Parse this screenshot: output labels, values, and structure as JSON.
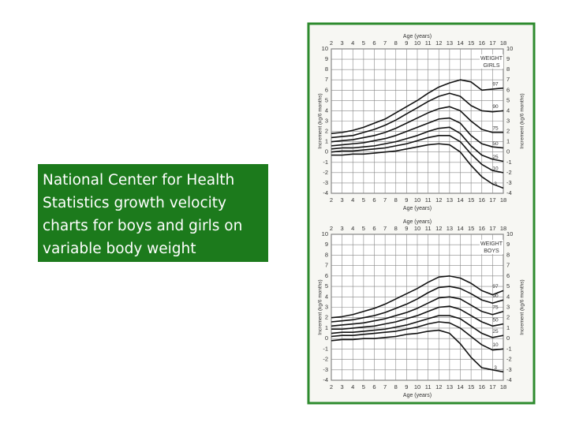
{
  "text_box": "National Center for Health Statistics growth velocity charts for boys and girls on variable body weight",
  "chart_data": [
    {
      "type": "line",
      "annotation": [
        "WEIGHT",
        "GIRLS"
      ],
      "x_label": "Age (years)",
      "y_label": "Increment (kg/6 months)",
      "x": [
        2,
        3,
        4,
        5,
        6,
        7,
        8,
        9,
        10,
        11,
        12,
        13,
        14,
        15,
        16,
        17,
        18
      ],
      "xlim": [
        2,
        18
      ],
      "xticks": [
        2,
        3,
        4,
        5,
        6,
        7,
        8,
        9,
        10,
        11,
        12,
        13,
        14,
        15,
        16,
        17,
        18
      ],
      "ylim": [
        -4,
        10
      ],
      "yticks": [
        -4,
        -3,
        -2,
        -1,
        0,
        1,
        2,
        3,
        4,
        5,
        6,
        7,
        8,
        9,
        10
      ],
      "grid": true,
      "series": [
        {
          "name": "97",
          "color": "#111111",
          "values": [
            1.8,
            1.9,
            2.1,
            2.4,
            2.8,
            3.2,
            3.8,
            4.4,
            5.0,
            5.7,
            6.3,
            6.7,
            7.0,
            6.8,
            6.0,
            6.1,
            6.2
          ]
        },
        {
          "name": "90",
          "color": "#111111",
          "values": [
            1.4,
            1.5,
            1.6,
            1.9,
            2.2,
            2.6,
            3.1,
            3.7,
            4.3,
            4.9,
            5.4,
            5.7,
            5.4,
            4.5,
            4.0,
            3.9,
            4.0
          ]
        },
        {
          "name": "75",
          "color": "#111111",
          "values": [
            1.0,
            1.1,
            1.2,
            1.4,
            1.6,
            1.9,
            2.3,
            2.8,
            3.3,
            3.8,
            4.2,
            4.4,
            4.0,
            3.0,
            2.2,
            1.9,
            1.9
          ]
        },
        {
          "name": "50",
          "color": "#111111",
          "values": [
            0.6,
            0.7,
            0.8,
            0.9,
            1.1,
            1.3,
            1.6,
            2.0,
            2.4,
            2.8,
            3.2,
            3.3,
            2.8,
            1.6,
            0.8,
            0.5,
            0.4
          ]
        },
        {
          "name": "25",
          "color": "#111111",
          "values": [
            0.3,
            0.4,
            0.4,
            0.5,
            0.6,
            0.8,
            1.0,
            1.3,
            1.6,
            2.0,
            2.3,
            2.4,
            1.8,
            0.6,
            -0.3,
            -0.7,
            -0.9
          ]
        },
        {
          "name": "10",
          "color": "#111111",
          "values": [
            0,
            0.1,
            0.1,
            0.2,
            0.3,
            0.4,
            0.6,
            0.8,
            1.1,
            1.4,
            1.6,
            1.6,
            1.0,
            -0.2,
            -1.2,
            -1.8,
            -2.0
          ]
        },
        {
          "name": "3",
          "color": "#111111",
          "values": [
            -0.3,
            -0.3,
            -0.2,
            -0.2,
            -0.1,
            0,
            0.1,
            0.3,
            0.5,
            0.7,
            0.8,
            0.7,
            0,
            -1.3,
            -2.4,
            -3.1,
            -3.5
          ]
        }
      ]
    },
    {
      "type": "line",
      "annotation": [
        "WEIGHT",
        "BOYS"
      ],
      "x_label": "Age (years)",
      "y_label": "Increment (kg/6 months)",
      "x": [
        2,
        3,
        4,
        5,
        6,
        7,
        8,
        9,
        10,
        11,
        12,
        13,
        14,
        15,
        16,
        17,
        18
      ],
      "xlim": [
        2,
        18
      ],
      "xticks": [
        2,
        3,
        4,
        5,
        6,
        7,
        8,
        9,
        10,
        11,
        12,
        13,
        14,
        15,
        16,
        17,
        18
      ],
      "ylim": [
        -4,
        10
      ],
      "yticks": [
        -4,
        -3,
        -2,
        -1,
        0,
        1,
        2,
        3,
        4,
        5,
        6,
        7,
        8,
        9,
        10
      ],
      "grid": true,
      "series": [
        {
          "name": "97",
          "color": "#111111",
          "values": [
            2.0,
            2.1,
            2.3,
            2.6,
            2.9,
            3.3,
            3.8,
            4.3,
            4.8,
            5.4,
            5.9,
            6.0,
            5.8,
            5.3,
            4.6,
            4.2,
            4.6
          ]
        },
        {
          "name": "90",
          "color": "#111111",
          "values": [
            1.6,
            1.7,
            1.8,
            2.0,
            2.2,
            2.5,
            2.9,
            3.3,
            3.8,
            4.4,
            4.9,
            5.0,
            4.8,
            4.3,
            3.7,
            3.4,
            3.7
          ]
        },
        {
          "name": "75",
          "color": "#111111",
          "values": [
            1.2,
            1.3,
            1.4,
            1.5,
            1.7,
            1.9,
            2.2,
            2.5,
            2.9,
            3.4,
            3.9,
            4.0,
            3.8,
            3.2,
            2.6,
            2.3,
            2.6
          ]
        },
        {
          "name": "50",
          "color": "#111111",
          "values": [
            0.9,
            0.9,
            1.0,
            1.1,
            1.2,
            1.4,
            1.6,
            1.9,
            2.2,
            2.6,
            3.0,
            3.1,
            2.8,
            2.2,
            1.6,
            1.2,
            1.4
          ]
        },
        {
          "name": "25",
          "color": "#111111",
          "values": [
            0.5,
            0.6,
            0.6,
            0.7,
            0.8,
            0.9,
            1.1,
            1.3,
            1.6,
            1.9,
            2.2,
            2.2,
            1.9,
            1.2,
            0.5,
            0.1,
            0.3
          ]
        },
        {
          "name": "10",
          "color": "#111111",
          "values": [
            0.2,
            0.3,
            0.3,
            0.4,
            0.5,
            0.6,
            0.7,
            0.9,
            1.1,
            1.4,
            1.6,
            1.5,
            1.0,
            0.2,
            -0.6,
            -1.1,
            -1.0
          ]
        },
        {
          "name": "3",
          "color": "#111111",
          "values": [
            -0.2,
            -0.1,
            -0.1,
            0,
            0,
            0.1,
            0.2,
            0.4,
            0.5,
            0.7,
            0.8,
            0.5,
            -0.5,
            -1.8,
            -2.8,
            -3.0,
            -3.2
          ]
        }
      ]
    }
  ]
}
